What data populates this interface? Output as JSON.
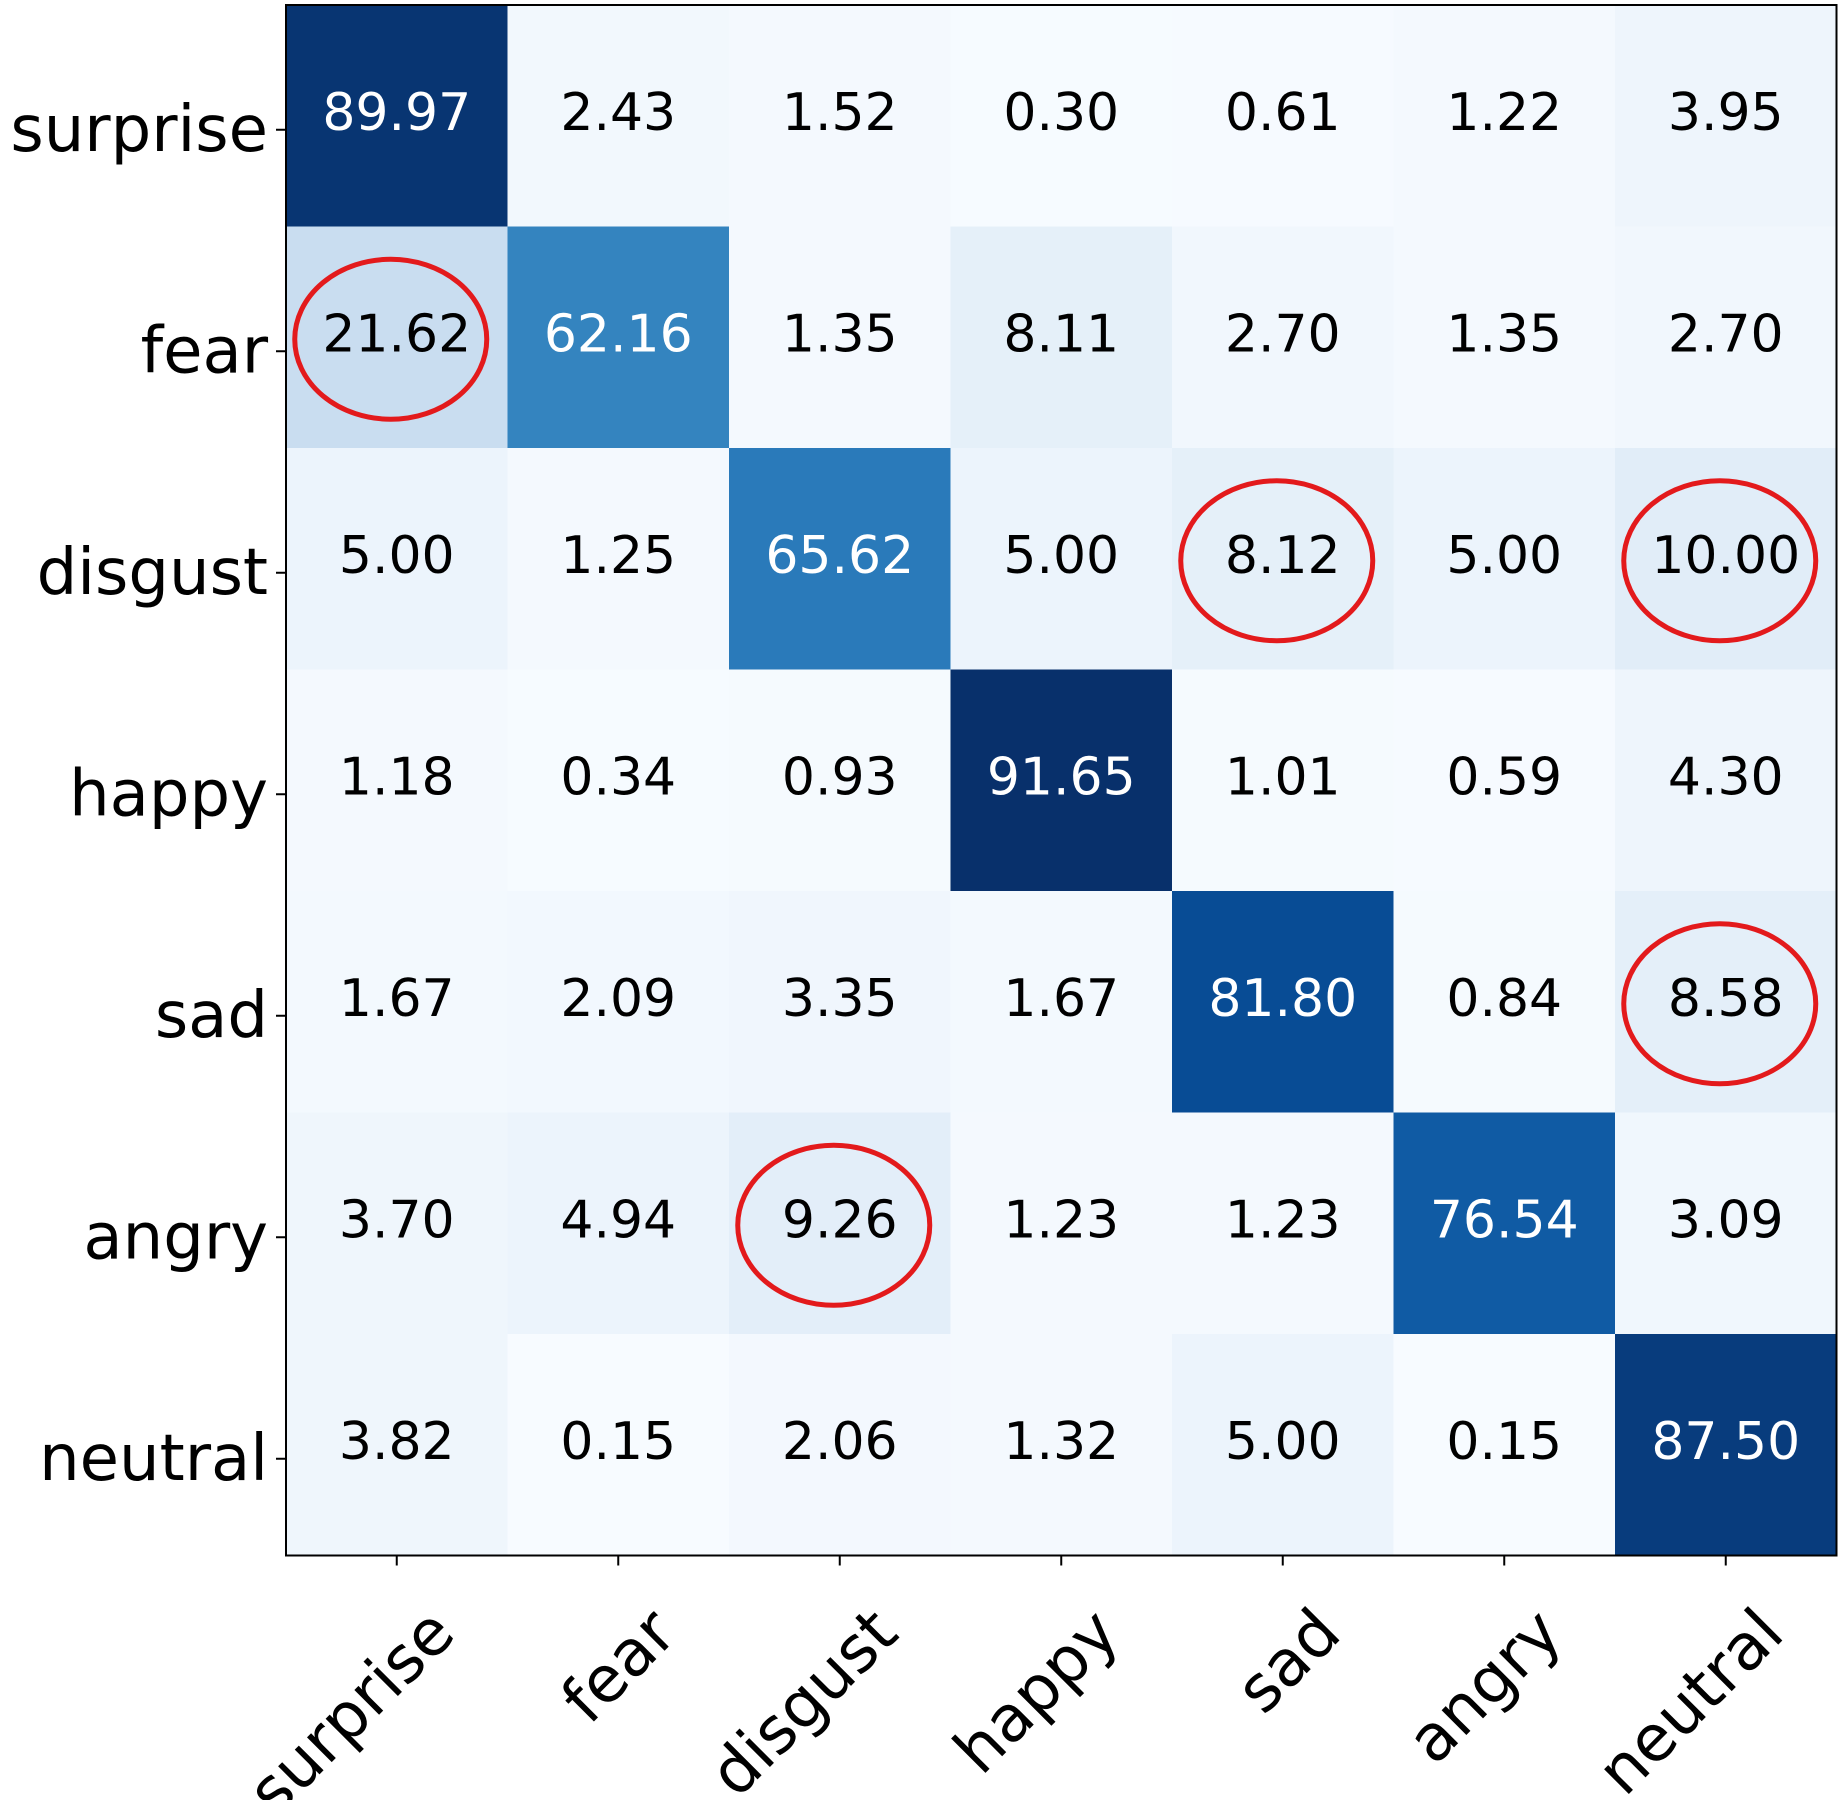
{
  "chart_data": {
    "type": "heatmap",
    "title": "",
    "xlabel": "",
    "ylabel": "",
    "row_labels": [
      "surprise",
      "fear",
      "disgust",
      "happy",
      "sad",
      "angry",
      "neutral"
    ],
    "col_labels": [
      "surprise",
      "fear",
      "disgust",
      "happy",
      "sad",
      "angry",
      "neutral"
    ],
    "values": [
      [
        89.97,
        2.43,
        1.52,
        0.3,
        0.61,
        1.22,
        3.95
      ],
      [
        21.62,
        62.16,
        1.35,
        8.11,
        2.7,
        1.35,
        2.7
      ],
      [
        5.0,
        1.25,
        65.62,
        5.0,
        8.12,
        5.0,
        10.0
      ],
      [
        1.18,
        0.34,
        0.93,
        91.65,
        1.01,
        0.59,
        4.3
      ],
      [
        1.67,
        2.09,
        3.35,
        1.67,
        81.8,
        0.84,
        8.58
      ],
      [
        3.7,
        4.94,
        9.26,
        1.23,
        1.23,
        76.54,
        3.09
      ],
      [
        3.82,
        0.15,
        2.06,
        1.32,
        5.0,
        0.15,
        87.5
      ]
    ],
    "value_labels": [
      [
        "89.97",
        "2.43",
        "1.52",
        "0.30",
        "0.61",
        "1.22",
        "3.95"
      ],
      [
        "21.62",
        "62.16",
        "1.35",
        "8.11",
        "2.70",
        "1.35",
        "2.70"
      ],
      [
        "5.00",
        "1.25",
        "65.62",
        "5.00",
        "8.12",
        "5.00",
        "10.00"
      ],
      [
        "1.18",
        "0.34",
        "0.93",
        "91.65",
        "1.01",
        "0.59",
        "4.30"
      ],
      [
        "1.67",
        "2.09",
        "3.35",
        "1.67",
        "81.80",
        "0.84",
        "8.58"
      ],
      [
        "3.70",
        "4.94",
        "9.26",
        "1.23",
        "1.23",
        "76.54",
        "3.09"
      ],
      [
        "3.82",
        "0.15",
        "2.06",
        "1.32",
        "5.00",
        "0.15",
        "87.50"
      ]
    ],
    "colormap": "Blues",
    "value_range": [
      0,
      91.65
    ],
    "highlighted_cells": [
      {
        "row": "fear",
        "col": "surprise"
      },
      {
        "row": "disgust",
        "col": "sad"
      },
      {
        "row": "disgust",
        "col": "neutral"
      },
      {
        "row": "sad",
        "col": "neutral"
      },
      {
        "row": "angry",
        "col": "disgust"
      }
    ]
  },
  "colors": {
    "highlight_ring": "#e31a1c",
    "light_text": "#ffffff",
    "dark_text": "#000000",
    "axis": "#000000"
  }
}
